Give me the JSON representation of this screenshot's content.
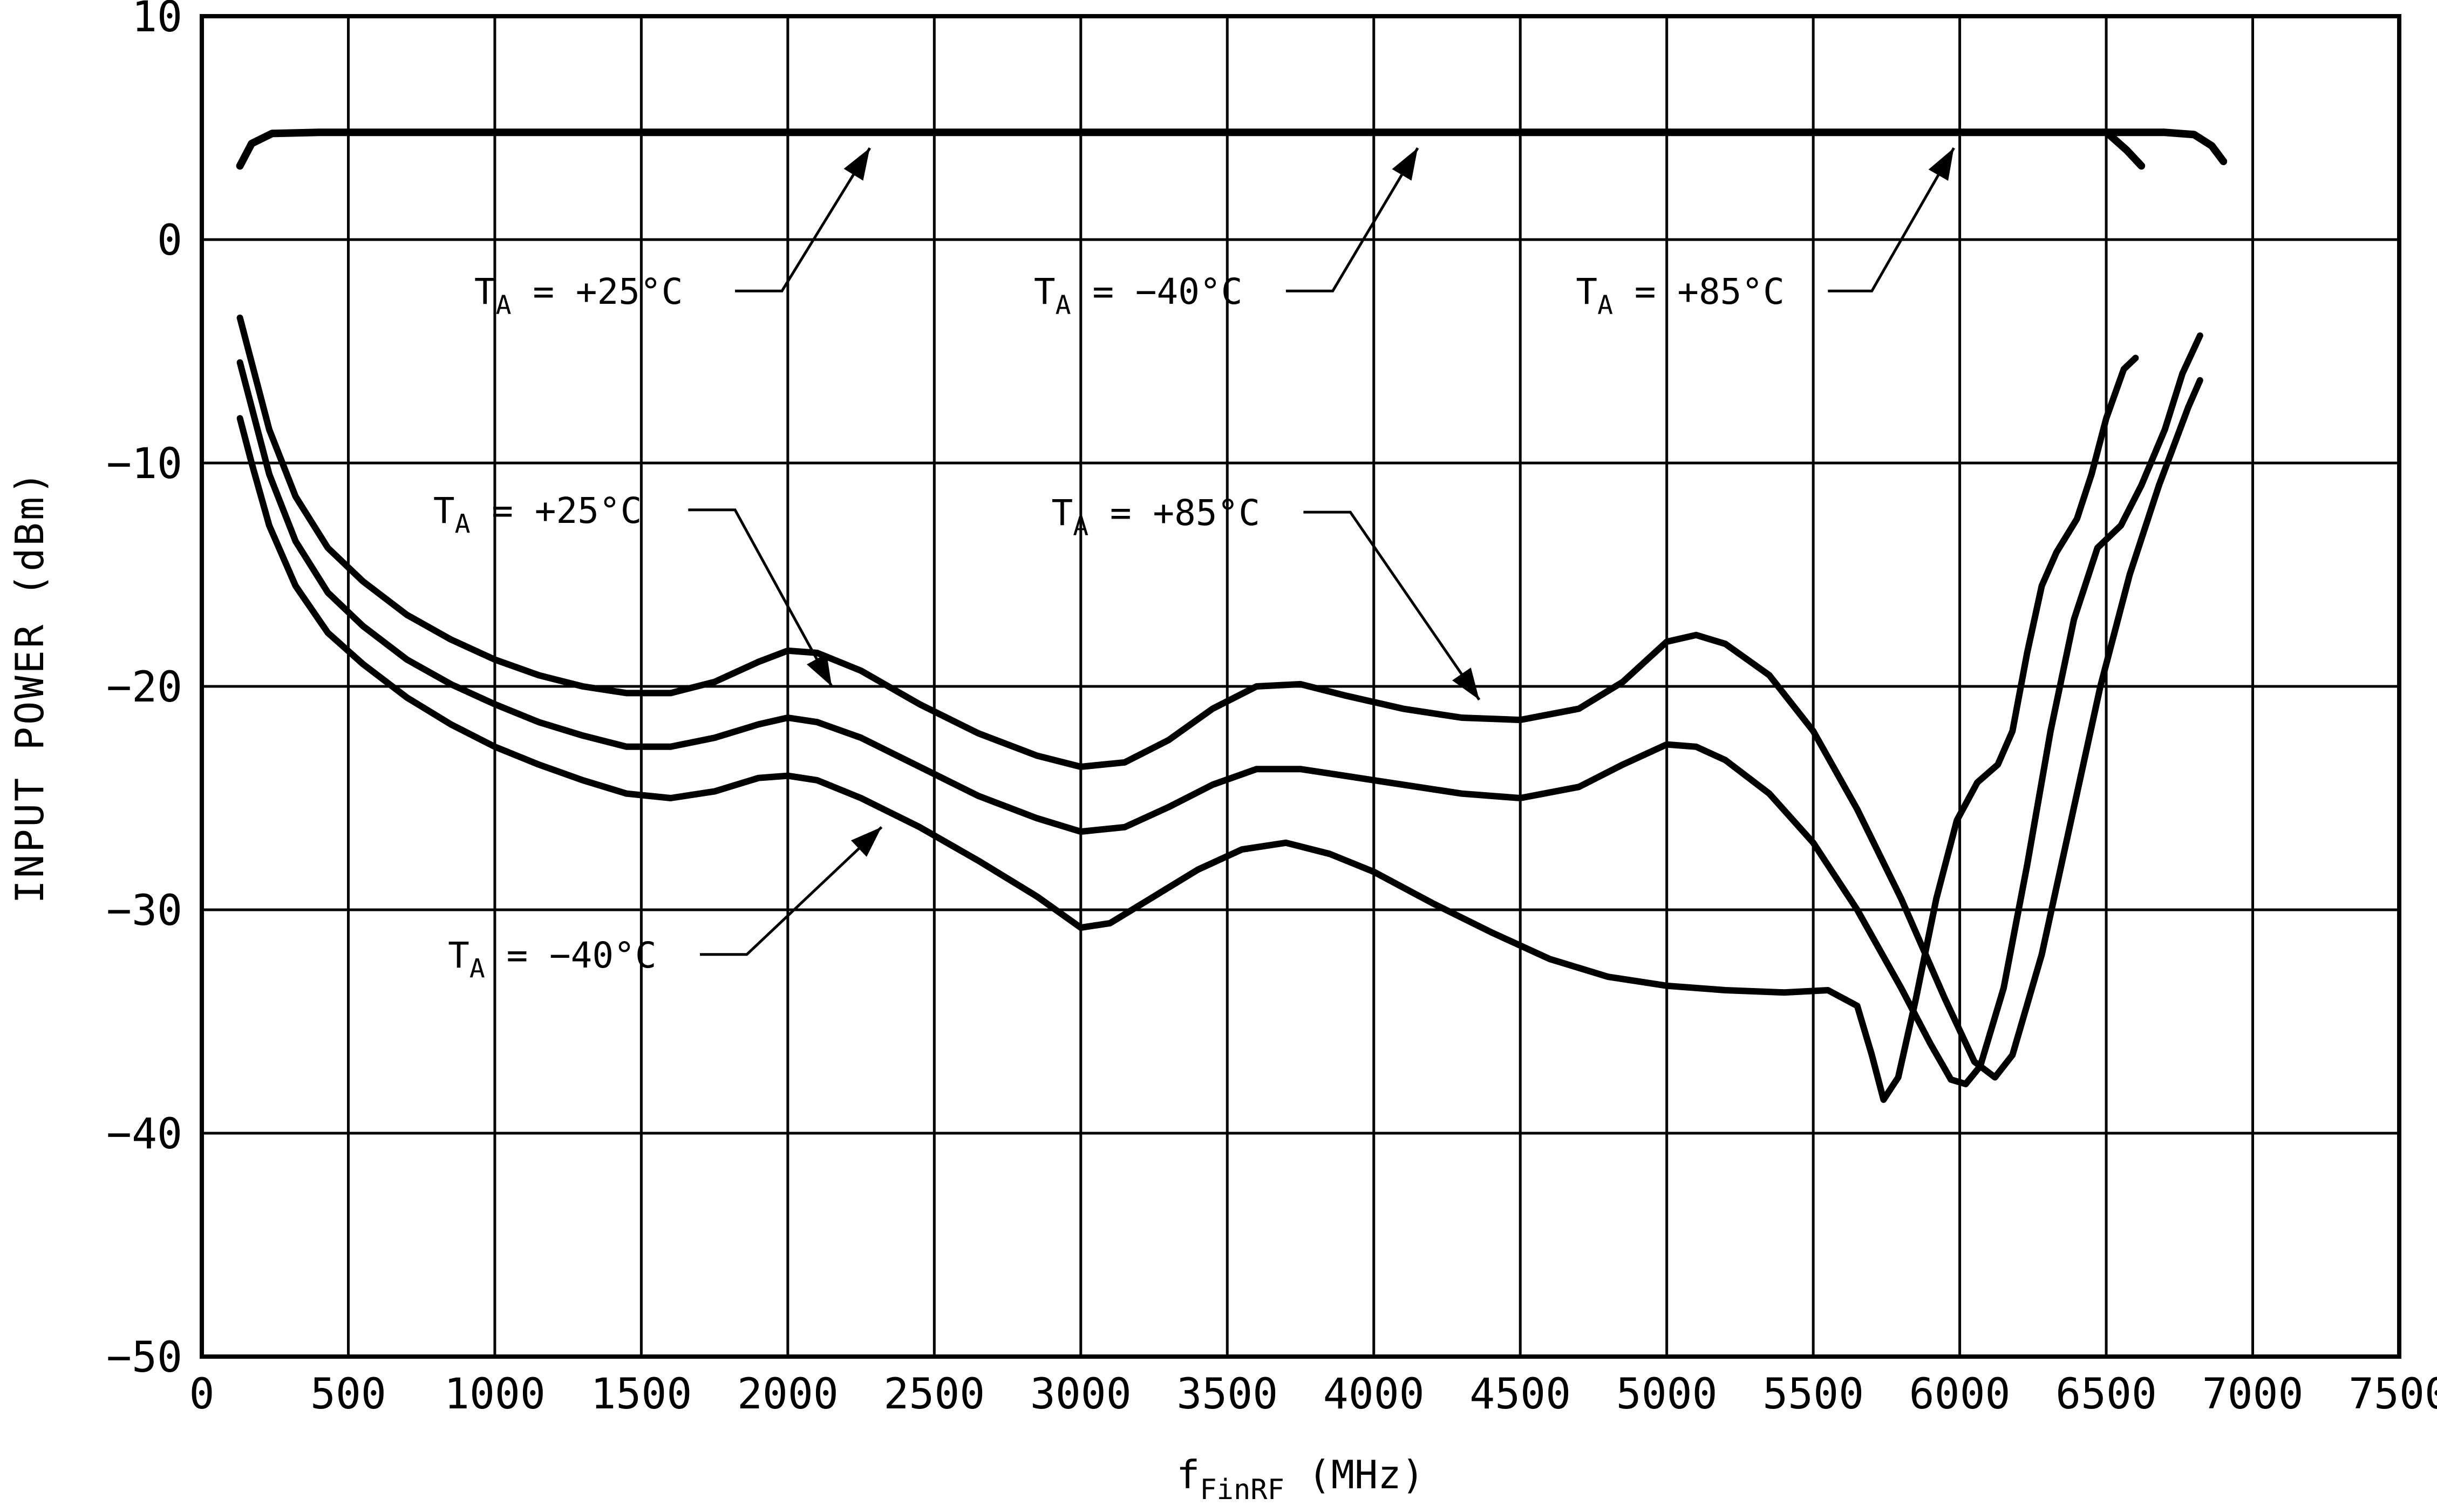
{
  "colors": {
    "line": "#000000",
    "background": "#ffffff"
  },
  "chart_data": {
    "type": "line",
    "title": "",
    "xlabel": "f|FinRF| (MHz)",
    "ylabel": "INPUT POWER (dBm)",
    "xlim": [
      0,
      7500
    ],
    "ylim": [
      -50,
      10
    ],
    "grid": true,
    "legend_position": "none",
    "xticks": [
      0,
      500,
      1000,
      1500,
      2000,
      2500,
      3000,
      3500,
      4000,
      4500,
      5000,
      5500,
      6000,
      6500,
      7000,
      7500
    ],
    "yticks": [
      10,
      0,
      -10,
      -20,
      -30,
      -40,
      -50
    ],
    "series": [
      {
        "name": "max-input-power-all-temps",
        "lw": 14,
        "points": [
          [
            130,
            3.3
          ],
          [
            170,
            4.3
          ],
          [
            240,
            4.75
          ],
          [
            400,
            4.8
          ],
          [
            6700,
            4.8
          ],
          [
            6800,
            4.7
          ],
          [
            6860,
            4.2
          ],
          [
            6900,
            3.5
          ]
        ]
      },
      {
        "name": "max-input-power-end-tick",
        "lw": 14,
        "points": [
          [
            6510,
            4.7
          ],
          [
            6570,
            4.0
          ],
          [
            6620,
            3.3
          ]
        ]
      },
      {
        "name": "min-input-power-plus85C",
        "lw": 12,
        "points": [
          [
            130,
            -3.5
          ],
          [
            170,
            -5.5
          ],
          [
            230,
            -8.5
          ],
          [
            320,
            -11.5
          ],
          [
            430,
            -13.8
          ],
          [
            550,
            -15.3
          ],
          [
            700,
            -16.8
          ],
          [
            850,
            -17.9
          ],
          [
            1000,
            -18.8
          ],
          [
            1150,
            -19.5
          ],
          [
            1300,
            -20.0
          ],
          [
            1450,
            -20.3
          ],
          [
            1600,
            -20.3
          ],
          [
            1750,
            -19.8
          ],
          [
            1900,
            -18.9
          ],
          [
            2000,
            -18.4
          ],
          [
            2100,
            -18.5
          ],
          [
            2250,
            -19.3
          ],
          [
            2450,
            -20.8
          ],
          [
            2650,
            -22.1
          ],
          [
            2850,
            -23.1
          ],
          [
            3000,
            -23.6
          ],
          [
            3150,
            -23.4
          ],
          [
            3300,
            -22.4
          ],
          [
            3450,
            -21.0
          ],
          [
            3600,
            -20.0
          ],
          [
            3750,
            -19.9
          ],
          [
            3900,
            -20.4
          ],
          [
            4100,
            -21.0
          ],
          [
            4300,
            -21.4
          ],
          [
            4500,
            -21.5
          ],
          [
            4700,
            -21.0
          ],
          [
            4850,
            -19.8
          ],
          [
            5000,
            -18.0
          ],
          [
            5100,
            -17.7
          ],
          [
            5200,
            -18.1
          ],
          [
            5350,
            -19.5
          ],
          [
            5500,
            -22.0
          ],
          [
            5650,
            -25.5
          ],
          [
            5800,
            -29.5
          ],
          [
            5950,
            -34.0
          ],
          [
            6050,
            -36.8
          ],
          [
            6120,
            -37.5
          ],
          [
            6180,
            -36.5
          ],
          [
            6280,
            -32.0
          ],
          [
            6380,
            -26.0
          ],
          [
            6480,
            -20.0
          ],
          [
            6580,
            -15.0
          ],
          [
            6680,
            -11.0
          ],
          [
            6780,
            -7.5
          ],
          [
            6820,
            -6.3
          ]
        ]
      },
      {
        "name": "min-input-power-plus25C",
        "lw": 12,
        "points": [
          [
            130,
            -5.5
          ],
          [
            170,
            -7.5
          ],
          [
            230,
            -10.5
          ],
          [
            320,
            -13.5
          ],
          [
            430,
            -15.8
          ],
          [
            550,
            -17.3
          ],
          [
            700,
            -18.8
          ],
          [
            850,
            -19.9
          ],
          [
            1000,
            -20.8
          ],
          [
            1150,
            -21.6
          ],
          [
            1300,
            -22.2
          ],
          [
            1450,
            -22.7
          ],
          [
            1600,
            -22.7
          ],
          [
            1750,
            -22.3
          ],
          [
            1900,
            -21.7
          ],
          [
            2000,
            -21.4
          ],
          [
            2100,
            -21.6
          ],
          [
            2250,
            -22.3
          ],
          [
            2450,
            -23.6
          ],
          [
            2650,
            -24.9
          ],
          [
            2850,
            -25.9
          ],
          [
            3000,
            -26.5
          ],
          [
            3150,
            -26.3
          ],
          [
            3300,
            -25.4
          ],
          [
            3450,
            -24.4
          ],
          [
            3600,
            -23.7
          ],
          [
            3750,
            -23.7
          ],
          [
            3900,
            -24.0
          ],
          [
            4100,
            -24.4
          ],
          [
            4300,
            -24.8
          ],
          [
            4500,
            -25.0
          ],
          [
            4700,
            -24.5
          ],
          [
            4850,
            -23.5
          ],
          [
            5000,
            -22.6
          ],
          [
            5100,
            -22.7
          ],
          [
            5200,
            -23.3
          ],
          [
            5350,
            -24.8
          ],
          [
            5500,
            -27.0
          ],
          [
            5650,
            -30.0
          ],
          [
            5800,
            -33.5
          ],
          [
            5900,
            -36.0
          ],
          [
            5970,
            -37.6
          ],
          [
            6020,
            -37.8
          ],
          [
            6070,
            -37.0
          ],
          [
            6150,
            -33.5
          ],
          [
            6230,
            -28.0
          ],
          [
            6310,
            -22.0
          ],
          [
            6390,
            -17.0
          ],
          [
            6470,
            -13.8
          ],
          [
            6550,
            -12.8
          ],
          [
            6620,
            -11.0
          ],
          [
            6700,
            -8.5
          ],
          [
            6760,
            -6.0
          ],
          [
            6820,
            -4.3
          ]
        ]
      },
      {
        "name": "min-input-power-minus40C",
        "lw": 12,
        "points": [
          [
            130,
            -8.0
          ],
          [
            170,
            -10.0
          ],
          [
            230,
            -12.8
          ],
          [
            320,
            -15.5
          ],
          [
            430,
            -17.6
          ],
          [
            550,
            -19.0
          ],
          [
            700,
            -20.5
          ],
          [
            850,
            -21.7
          ],
          [
            1000,
            -22.7
          ],
          [
            1150,
            -23.5
          ],
          [
            1300,
            -24.2
          ],
          [
            1450,
            -24.8
          ],
          [
            1600,
            -25.0
          ],
          [
            1750,
            -24.7
          ],
          [
            1900,
            -24.1
          ],
          [
            2000,
            -24.0
          ],
          [
            2100,
            -24.2
          ],
          [
            2250,
            -25.0
          ],
          [
            2450,
            -26.3
          ],
          [
            2650,
            -27.8
          ],
          [
            2850,
            -29.4
          ],
          [
            3000,
            -30.8
          ],
          [
            3100,
            -30.6
          ],
          [
            3250,
            -29.4
          ],
          [
            3400,
            -28.2
          ],
          [
            3550,
            -27.3
          ],
          [
            3700,
            -27.0
          ],
          [
            3850,
            -27.5
          ],
          [
            4000,
            -28.3
          ],
          [
            4200,
            -29.7
          ],
          [
            4400,
            -31.0
          ],
          [
            4600,
            -32.2
          ],
          [
            4800,
            -33.0
          ],
          [
            5000,
            -33.4
          ],
          [
            5200,
            -33.6
          ],
          [
            5400,
            -33.7
          ],
          [
            5550,
            -33.6
          ],
          [
            5650,
            -34.3
          ],
          [
            5700,
            -36.5
          ],
          [
            5740,
            -38.5
          ],
          [
            5790,
            -37.5
          ],
          [
            5850,
            -34.0
          ],
          [
            5920,
            -29.5
          ],
          [
            5990,
            -26.0
          ],
          [
            6060,
            -24.3
          ],
          [
            6130,
            -23.5
          ],
          [
            6180,
            -22.0
          ],
          [
            6230,
            -18.5
          ],
          [
            6280,
            -15.5
          ],
          [
            6330,
            -14.0
          ],
          [
            6400,
            -12.5
          ],
          [
            6450,
            -10.5
          ],
          [
            6500,
            -8.0
          ],
          [
            6560,
            -5.8
          ],
          [
            6600,
            -5.3
          ]
        ]
      }
    ],
    "annotations": [
      {
        "name": "max-line-plus25C",
        "text": "T|A| = +25°C",
        "x": 930,
        "y": -2.3,
        "leader": [
          [
            1820,
            -2.3
          ],
          [
            1980,
            -2.3
          ],
          [
            2280,
            4.1
          ]
        ]
      },
      {
        "name": "max-line-minus40C",
        "text": "T|A| = -40°C",
        "x": 2840,
        "y": -2.3,
        "leader": [
          [
            3700,
            -2.3
          ],
          [
            3860,
            -2.3
          ],
          [
            4150,
            4.1
          ]
        ]
      },
      {
        "name": "max-line-plus85C",
        "text": "T|A| = +85°C",
        "x": 4690,
        "y": -2.3,
        "leader": [
          [
            5550,
            -2.3
          ],
          [
            5700,
            -2.3
          ],
          [
            5980,
            4.1
          ]
        ]
      },
      {
        "name": "min-curve-plus25C",
        "text": "T|A| = +25°C",
        "x": 790,
        "y": -12.1,
        "leader": [
          [
            1660,
            -12.1
          ],
          [
            1820,
            -12.1
          ],
          [
            2150,
            -20.0
          ]
        ]
      },
      {
        "name": "min-curve-plus85C",
        "text": "T|A| = +85°C",
        "x": 2900,
        "y": -12.2,
        "leader": [
          [
            3760,
            -12.2
          ],
          [
            3920,
            -12.2
          ],
          [
            4360,
            -20.6
          ]
        ]
      },
      {
        "name": "min-curve-minus40C",
        "text": "T|A| = -40°C",
        "x": 840,
        "y": -32.0,
        "leader": [
          [
            1700,
            -32.0
          ],
          [
            1860,
            -32.0
          ],
          [
            2320,
            -26.3
          ]
        ]
      }
    ]
  }
}
